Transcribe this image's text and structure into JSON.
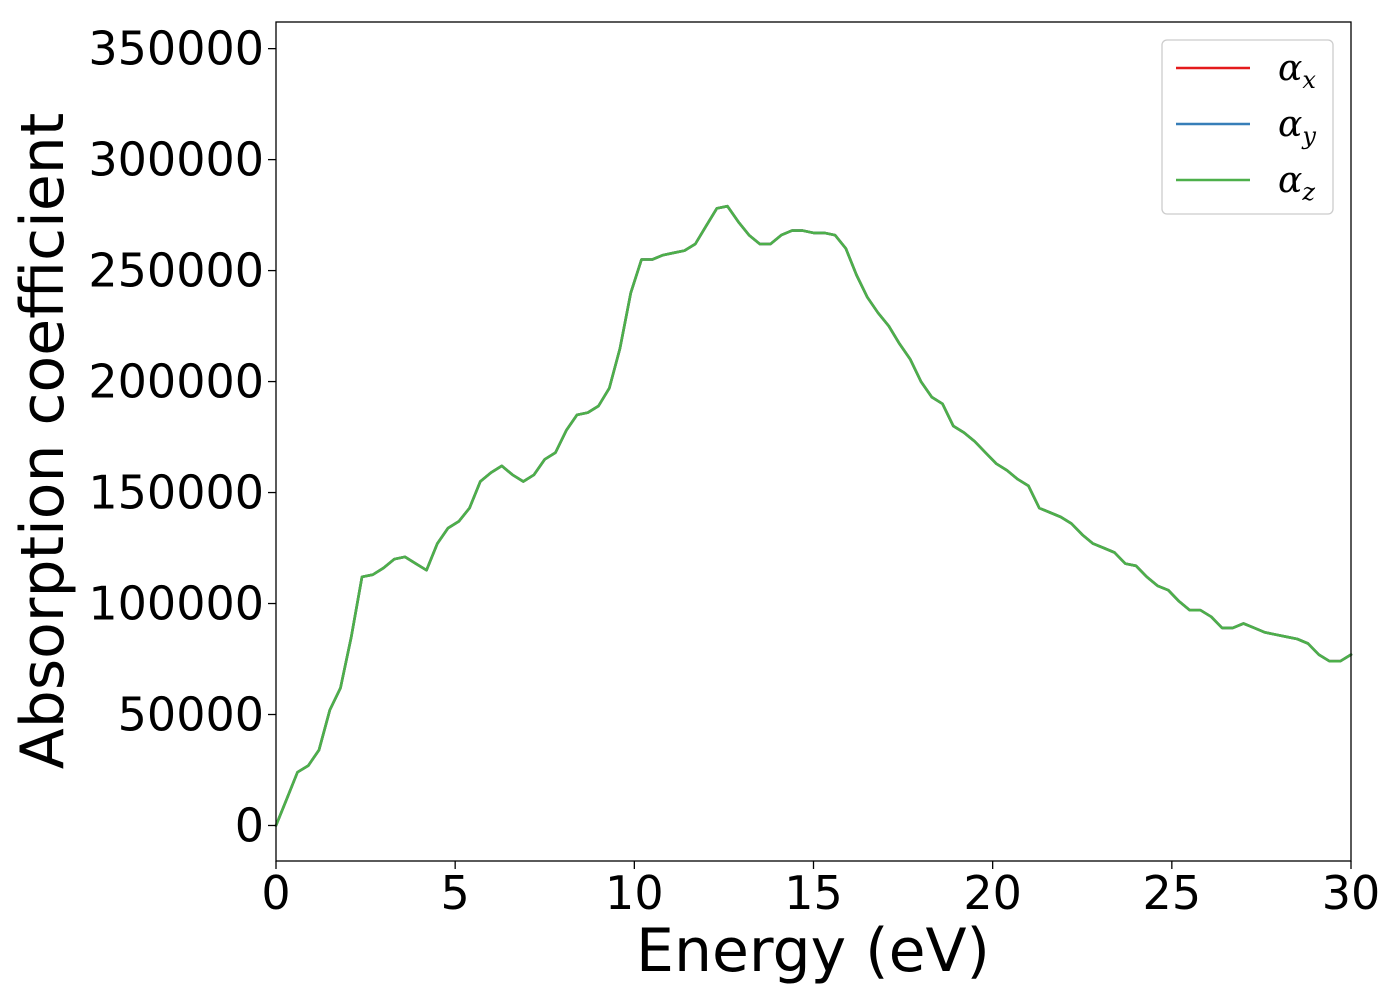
{
  "chart_data": {
    "type": "line",
    "title": "",
    "xlabel": "Energy (eV)",
    "ylabel": "Absorption coefficient",
    "xlim": [
      0,
      30
    ],
    "ylim": [
      -16000,
      362000
    ],
    "xticks": [
      0,
      5,
      10,
      15,
      20,
      25,
      30
    ],
    "yticks": [
      0,
      50000,
      100000,
      150000,
      200000,
      250000,
      300000,
      350000
    ],
    "xtick_labels": [
      "0",
      "5",
      "10",
      "15",
      "20",
      "25",
      "30"
    ],
    "ytick_labels": [
      "0",
      "50000",
      "100000",
      "150000",
      "200000",
      "250000",
      "300000",
      "350000"
    ],
    "grid": false,
    "legend_position": "top-right",
    "x": [
      0,
      0.3,
      0.6,
      0.9,
      1.2,
      1.5,
      1.8,
      2.1,
      2.4,
      2.7,
      3.0,
      3.3,
      3.6,
      3.9,
      4.2,
      4.5,
      4.8,
      5.1,
      5.4,
      5.7,
      6.0,
      6.3,
      6.6,
      6.9,
      7.2,
      7.5,
      7.8,
      8.1,
      8.4,
      8.7,
      9.0,
      9.3,
      9.6,
      9.9,
      10.2,
      10.5,
      10.8,
      11.1,
      11.4,
      11.7,
      12.0,
      12.3,
      12.6,
      12.9,
      13.2,
      13.5,
      13.8,
      14.1,
      14.4,
      14.7,
      15.0,
      15.3,
      15.6,
      15.9,
      16.2,
      16.5,
      16.8,
      17.1,
      17.4,
      17.7,
      18.0,
      18.3,
      18.6,
      18.9,
      19.2,
      19.5,
      19.8,
      20.1,
      20.4,
      20.7,
      21.0,
      21.3,
      21.6,
      21.9,
      22.2,
      22.5,
      22.8,
      23.1,
      23.4,
      23.7,
      24.0,
      24.3,
      24.6,
      24.9,
      25.2,
      25.5,
      25.8,
      26.1,
      26.4,
      26.7,
      27.0,
      27.3,
      27.6,
      27.9,
      28.2,
      28.5,
      28.8,
      29.1,
      29.4,
      29.7,
      30.0
    ],
    "series": [
      {
        "name": "x",
        "color": "#e41a1c",
        "values": [
          0,
          12000,
          24000,
          27000,
          34000,
          52000,
          62000,
          85000,
          112000,
          113000,
          116000,
          120000,
          121000,
          118000,
          115000,
          127000,
          134000,
          137000,
          143000,
          155000,
          159000,
          162000,
          158000,
          155000,
          158000,
          165000,
          168000,
          178000,
          185000,
          186000,
          189000,
          197000,
          215000,
          240000,
          255000,
          255000,
          257000,
          258000,
          259000,
          262000,
          270000,
          278000,
          279000,
          272000,
          266000,
          262000,
          262000,
          266000,
          268000,
          268000,
          267000,
          267000,
          266000,
          260000,
          248000,
          238000,
          231000,
          225000,
          217000,
          210000,
          200000,
          193000,
          190000,
          180000,
          177000,
          173000,
          168000,
          163000,
          160000,
          156000,
          153000,
          143000,
          141000,
          139000,
          136000,
          131000,
          127000,
          125000,
          123000,
          118000,
          117000,
          112000,
          108000,
          106000,
          101000,
          97000,
          97000,
          94000,
          89000,
          89000,
          91000,
          89000,
          87000,
          86000,
          85000,
          84000,
          82000,
          77000,
          74000,
          74000,
          77000
        ]
      },
      {
        "name": "y",
        "color": "#377eb8",
        "values": [
          0,
          12000,
          24000,
          27000,
          34000,
          52000,
          62000,
          85000,
          112000,
          113000,
          116000,
          120000,
          121000,
          118000,
          115000,
          127000,
          134000,
          137000,
          143000,
          155000,
          159000,
          162000,
          158000,
          155000,
          158000,
          165000,
          168000,
          178000,
          185000,
          186000,
          189000,
          197000,
          215000,
          240000,
          255000,
          255000,
          257000,
          258000,
          259000,
          262000,
          270000,
          278000,
          279000,
          272000,
          266000,
          262000,
          262000,
          266000,
          268000,
          268000,
          267000,
          267000,
          266000,
          260000,
          248000,
          238000,
          231000,
          225000,
          217000,
          210000,
          200000,
          193000,
          190000,
          180000,
          177000,
          173000,
          168000,
          163000,
          160000,
          156000,
          153000,
          143000,
          141000,
          139000,
          136000,
          131000,
          127000,
          125000,
          123000,
          118000,
          117000,
          112000,
          108000,
          106000,
          101000,
          97000,
          97000,
          94000,
          89000,
          89000,
          91000,
          89000,
          87000,
          86000,
          85000,
          84000,
          82000,
          77000,
          74000,
          74000,
          77000
        ]
      },
      {
        "name": "z",
        "color": "#4daf4a",
        "values": [
          0,
          12000,
          24000,
          27000,
          34000,
          52000,
          62000,
          85000,
          112000,
          113000,
          116000,
          120000,
          121000,
          118000,
          115000,
          127000,
          134000,
          137000,
          143000,
          155000,
          159000,
          162000,
          158000,
          155000,
          158000,
          165000,
          168000,
          178000,
          185000,
          186000,
          189000,
          197000,
          215000,
          240000,
          255000,
          255000,
          257000,
          258000,
          259000,
          262000,
          270000,
          278000,
          279000,
          272000,
          266000,
          262000,
          262000,
          266000,
          268000,
          268000,
          267000,
          267000,
          266000,
          260000,
          248000,
          238000,
          231000,
          225000,
          217000,
          210000,
          200000,
          193000,
          190000,
          180000,
          177000,
          173000,
          168000,
          163000,
          160000,
          156000,
          153000,
          143000,
          141000,
          139000,
          136000,
          131000,
          127000,
          125000,
          123000,
          118000,
          117000,
          112000,
          108000,
          106000,
          101000,
          97000,
          97000,
          94000,
          89000,
          89000,
          91000,
          89000,
          87000,
          86000,
          85000,
          84000,
          82000,
          77000,
          74000,
          74000,
          77000
        ]
      }
    ]
  },
  "legend": {
    "symbol": "α",
    "items": [
      {
        "sub": "x"
      },
      {
        "sub": "y"
      },
      {
        "sub": "z"
      }
    ]
  }
}
